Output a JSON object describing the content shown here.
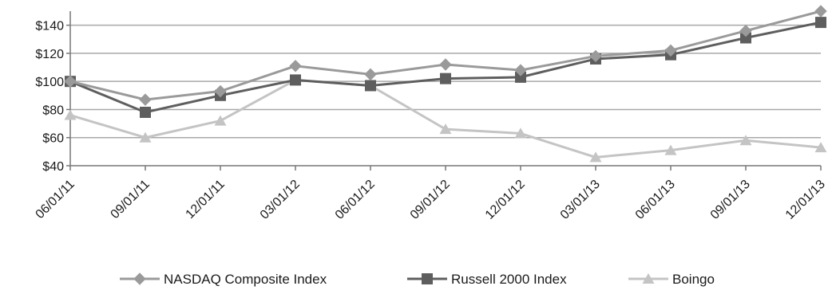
{
  "chart_data": {
    "type": "line",
    "title": "",
    "xlabel": "",
    "ylabel": "",
    "categories": [
      "06/01/11",
      "09/01/11",
      "12/01/11",
      "03/01/12",
      "06/01/12",
      "09/01/12",
      "12/01/12",
      "03/01/13",
      "06/01/13",
      "09/01/13",
      "12/01/13"
    ],
    "y_ticks": [
      "$40",
      "$60",
      "$80",
      "$100",
      "$120",
      "$140"
    ],
    "y_tick_values": [
      40,
      60,
      80,
      100,
      120,
      140
    ],
    "ylim": [
      40,
      150
    ],
    "grid": true,
    "legend_position": "bottom",
    "series": [
      {
        "name": "NASDAQ Composite Index",
        "marker": "diamond",
        "color": "#9a9a9a",
        "values": [
          100,
          87,
          93,
          111,
          105,
          112,
          108,
          118,
          122,
          136,
          150
        ]
      },
      {
        "name": "Russell 2000 Index",
        "marker": "square",
        "color": "#5e5e5e",
        "values": [
          100,
          78,
          90,
          101,
          97,
          102,
          103,
          116,
          119,
          131,
          142
        ]
      },
      {
        "name": "Boingo",
        "marker": "triangle",
        "color": "#c4c4c4",
        "values": [
          76,
          60,
          72,
          101,
          97,
          66,
          63,
          46,
          51,
          58,
          53
        ]
      }
    ]
  }
}
